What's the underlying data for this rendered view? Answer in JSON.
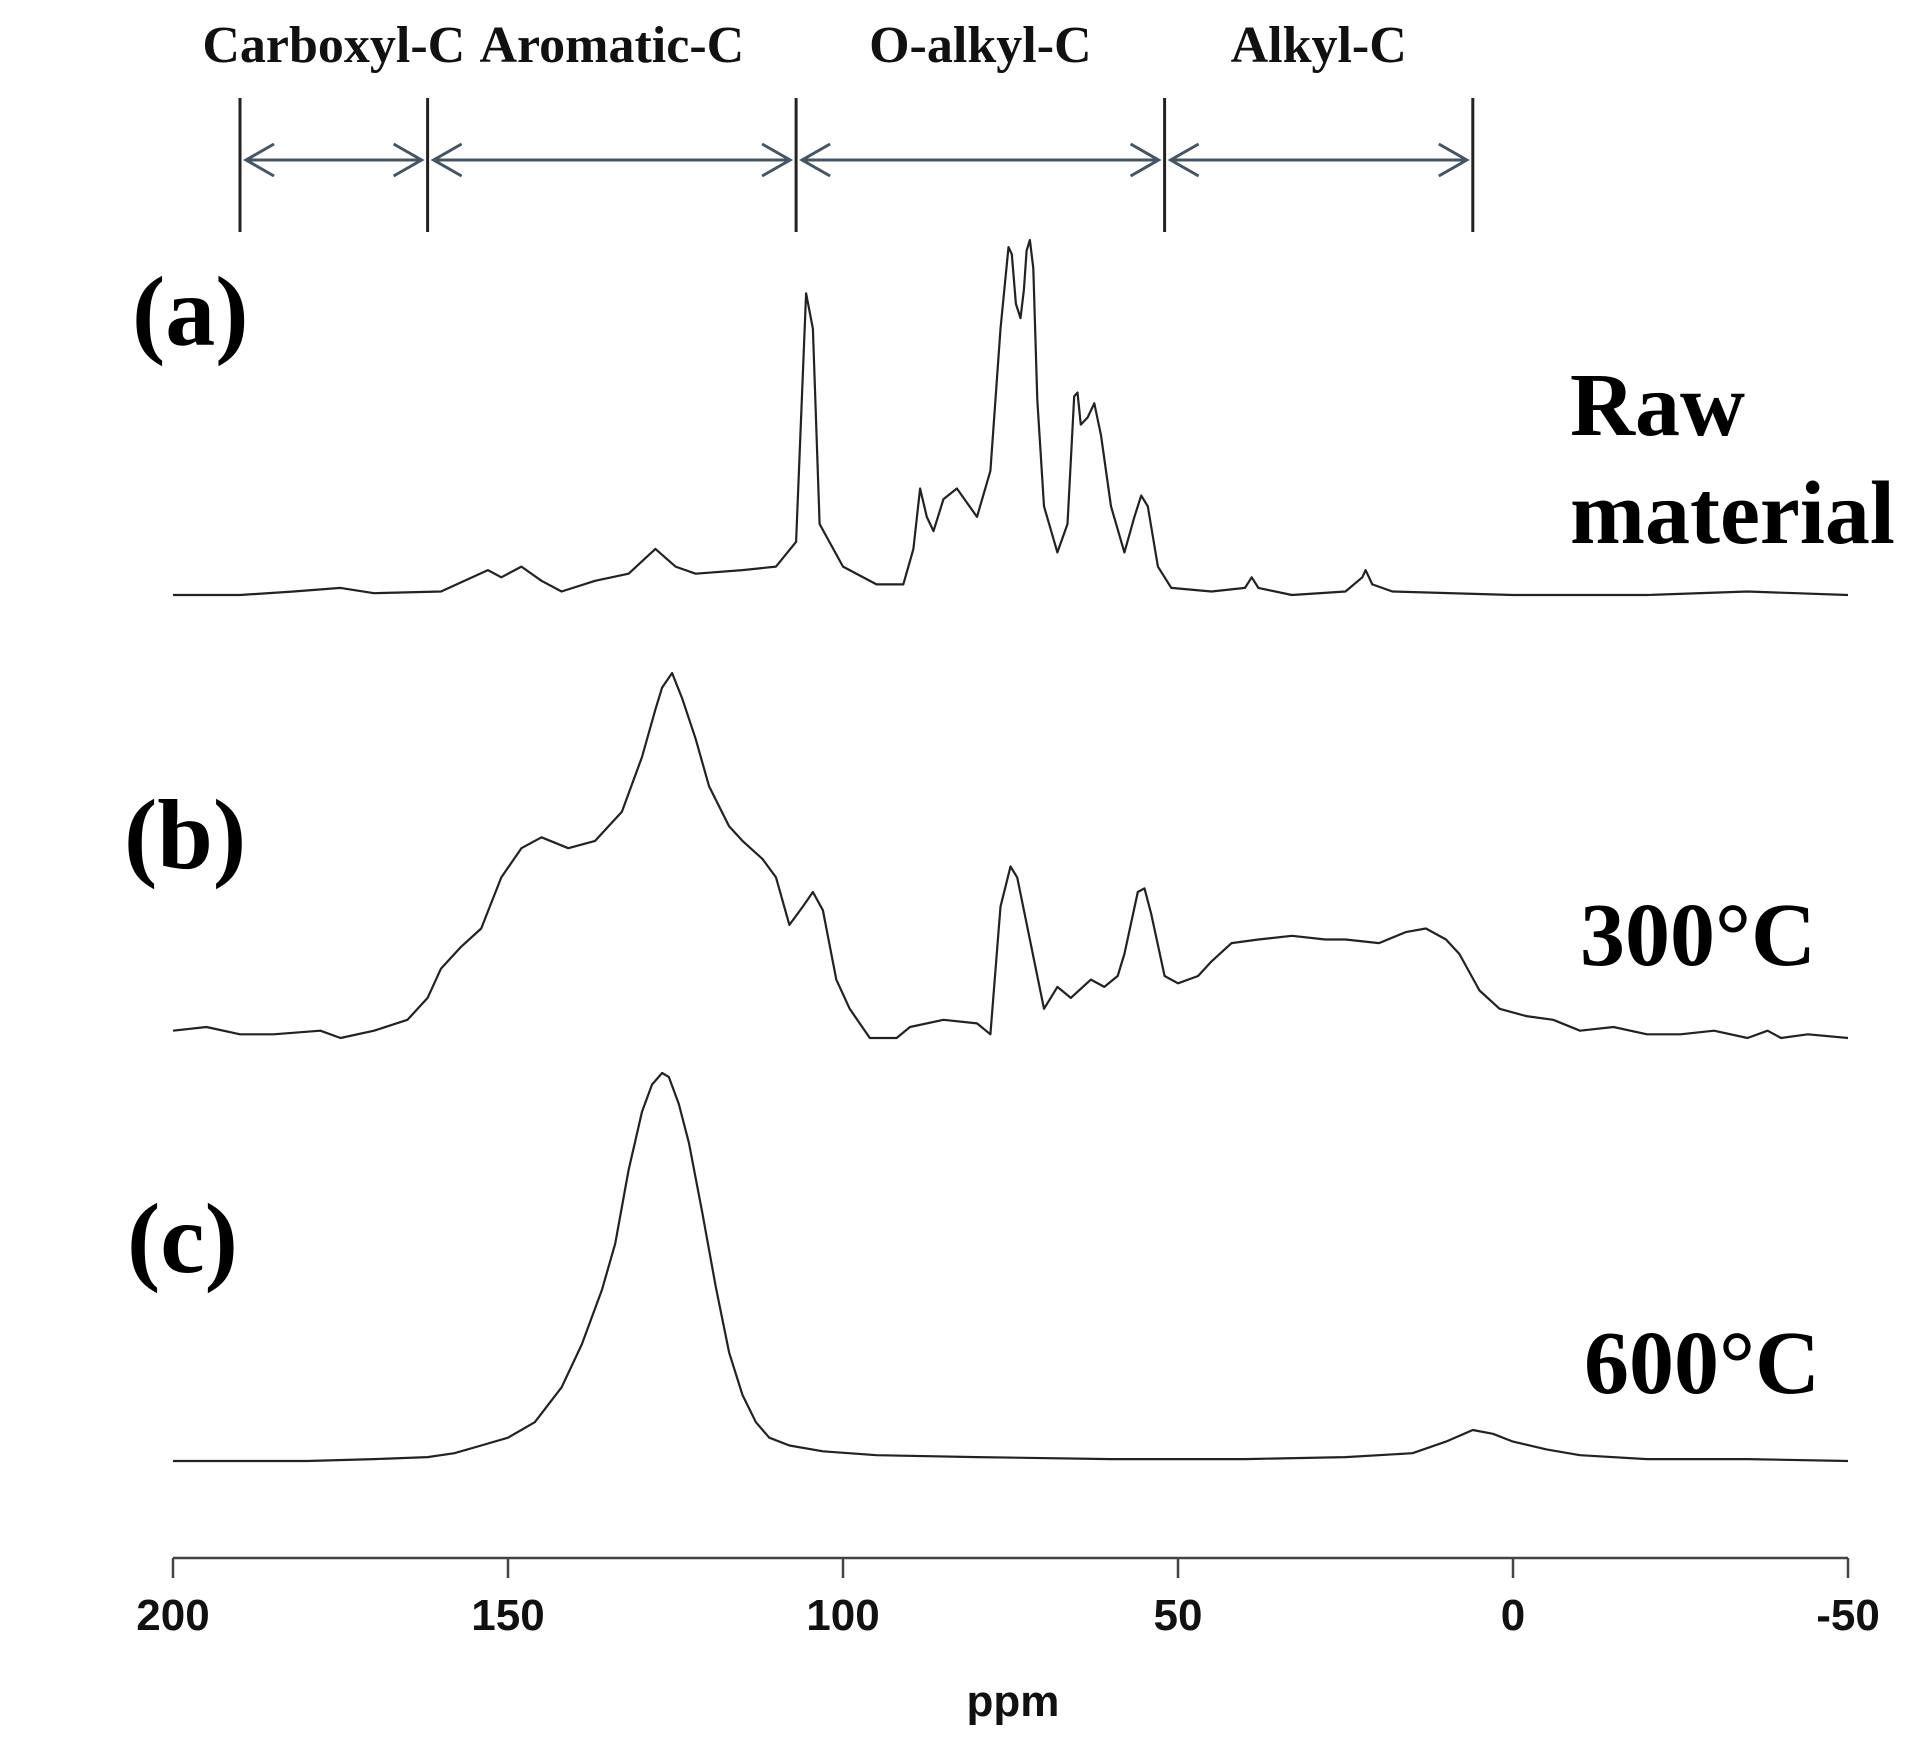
{
  "chart_data": {
    "type": "line",
    "xlabel": "ppm",
    "ylabel": "",
    "xlim": [
      200,
      -50
    ],
    "xticks": [
      200,
      150,
      100,
      50,
      0,
      -50
    ],
    "regions": [
      {
        "label": "Carboxyl-C",
        "from": 190,
        "to": 162
      },
      {
        "label": "Aromatic-C",
        "from": 162,
        "to": 107
      },
      {
        "label": "O-alkyl-C",
        "from": 107,
        "to": 52
      },
      {
        "label": "Alkyl-C",
        "from": 52,
        "to": 6
      }
    ],
    "series": [
      {
        "panel": "(a)",
        "name": "Raw material",
        "points": [
          [
            200,
            0.0
          ],
          [
            190,
            0.0
          ],
          [
            182,
            0.01
          ],
          [
            175,
            0.02
          ],
          [
            170,
            0.005
          ],
          [
            160,
            0.01
          ],
          [
            153,
            0.07
          ],
          [
            151,
            0.05
          ],
          [
            148,
            0.08
          ],
          [
            145,
            0.04
          ],
          [
            142,
            0.01
          ],
          [
            137,
            0.04
          ],
          [
            132,
            0.06
          ],
          [
            128,
            0.13
          ],
          [
            125,
            0.08
          ],
          [
            122,
            0.06
          ],
          [
            115,
            0.07
          ],
          [
            110,
            0.08
          ],
          [
            107,
            0.15
          ],
          [
            105.5,
            0.85
          ],
          [
            104.5,
            0.75
          ],
          [
            103.5,
            0.2
          ],
          [
            100,
            0.08
          ],
          [
            95,
            0.03
          ],
          [
            91,
            0.03
          ],
          [
            89.5,
            0.13
          ],
          [
            88.5,
            0.3
          ],
          [
            87.5,
            0.22
          ],
          [
            86.5,
            0.18
          ],
          [
            85,
            0.27
          ],
          [
            83,
            0.3
          ],
          [
            80,
            0.22
          ],
          [
            78,
            0.35
          ],
          [
            76.5,
            0.75
          ],
          [
            75.3,
            0.98
          ],
          [
            74.8,
            0.96
          ],
          [
            74.2,
            0.82
          ],
          [
            73.5,
            0.78
          ],
          [
            73,
            0.86
          ],
          [
            72.6,
            0.97
          ],
          [
            72.1,
            1.0
          ],
          [
            71.6,
            0.92
          ],
          [
            71,
            0.55
          ],
          [
            70,
            0.25
          ],
          [
            68,
            0.12
          ],
          [
            66.5,
            0.2
          ],
          [
            65.5,
            0.56
          ],
          [
            65,
            0.57
          ],
          [
            64.5,
            0.48
          ],
          [
            63.5,
            0.5
          ],
          [
            62.5,
            0.54
          ],
          [
            61.5,
            0.45
          ],
          [
            60,
            0.25
          ],
          [
            58,
            0.12
          ],
          [
            56.5,
            0.22
          ],
          [
            55.5,
            0.28
          ],
          [
            54.5,
            0.25
          ],
          [
            53,
            0.08
          ],
          [
            51,
            0.02
          ],
          [
            45,
            0.01
          ],
          [
            40,
            0.02
          ],
          [
            39,
            0.05
          ],
          [
            38,
            0.02
          ],
          [
            33,
            0.0
          ],
          [
            25,
            0.01
          ],
          [
            22.5,
            0.05
          ],
          [
            22,
            0.07
          ],
          [
            21,
            0.03
          ],
          [
            18,
            0.01
          ],
          [
            0,
            0.0
          ],
          [
            -20,
            0.0
          ],
          [
            -35,
            0.01
          ],
          [
            -50,
            0.0
          ]
        ]
      },
      {
        "panel": "(b)",
        "name": "300°C",
        "points": [
          [
            200,
            0.02
          ],
          [
            195,
            0.03
          ],
          [
            190,
            0.01
          ],
          [
            185,
            0.01
          ],
          [
            178,
            0.02
          ],
          [
            175,
            0.0
          ],
          [
            170,
            0.02
          ],
          [
            165,
            0.05
          ],
          [
            162,
            0.11
          ],
          [
            160,
            0.19
          ],
          [
            157,
            0.25
          ],
          [
            154,
            0.3
          ],
          [
            151,
            0.44
          ],
          [
            148,
            0.52
          ],
          [
            145,
            0.55
          ],
          [
            141,
            0.52
          ],
          [
            137,
            0.54
          ],
          [
            133,
            0.62
          ],
          [
            130,
            0.77
          ],
          [
            128,
            0.9
          ],
          [
            127,
            0.96
          ],
          [
            125.5,
            1.0
          ],
          [
            124,
            0.93
          ],
          [
            122,
            0.82
          ],
          [
            120,
            0.69
          ],
          [
            117,
            0.58
          ],
          [
            115,
            0.54
          ],
          [
            112,
            0.49
          ],
          [
            110,
            0.44
          ],
          [
            108,
            0.31
          ],
          [
            106,
            0.36
          ],
          [
            104.5,
            0.4
          ],
          [
            103,
            0.35
          ],
          [
            101,
            0.16
          ],
          [
            99,
            0.08
          ],
          [
            96,
            0.0
          ],
          [
            92,
            0.0
          ],
          [
            90,
            0.03
          ],
          [
            85,
            0.05
          ],
          [
            80,
            0.04
          ],
          [
            78,
            0.01
          ],
          [
            76.5,
            0.36
          ],
          [
            75,
            0.47
          ],
          [
            74,
            0.44
          ],
          [
            72,
            0.26
          ],
          [
            70,
            0.08
          ],
          [
            68,
            0.14
          ],
          [
            66,
            0.11
          ],
          [
            63,
            0.16
          ],
          [
            61,
            0.14
          ],
          [
            59,
            0.17
          ],
          [
            58,
            0.23
          ],
          [
            56,
            0.4
          ],
          [
            55,
            0.41
          ],
          [
            54,
            0.34
          ],
          [
            52,
            0.17
          ],
          [
            50,
            0.15
          ],
          [
            47,
            0.17
          ],
          [
            45,
            0.21
          ],
          [
            42,
            0.26
          ],
          [
            38,
            0.27
          ],
          [
            33,
            0.28
          ],
          [
            28,
            0.27
          ],
          [
            25,
            0.27
          ],
          [
            20,
            0.26
          ],
          [
            16,
            0.29
          ],
          [
            13,
            0.3
          ],
          [
            10,
            0.27
          ],
          [
            8,
            0.23
          ],
          [
            5,
            0.13
          ],
          [
            2,
            0.08
          ],
          [
            -2,
            0.06
          ],
          [
            -6,
            0.05
          ],
          [
            -10,
            0.02
          ],
          [
            -15,
            0.03
          ],
          [
            -20,
            0.01
          ],
          [
            -25,
            0.01
          ],
          [
            -30,
            0.02
          ],
          [
            -35,
            0.0
          ],
          [
            -38,
            0.02
          ],
          [
            -40,
            0.0
          ],
          [
            -44,
            0.01
          ],
          [
            -50,
            0.0
          ]
        ]
      },
      {
        "panel": "(c)",
        "name": "600°C",
        "points": [
          [
            200,
            0.0
          ],
          [
            190,
            0.0
          ],
          [
            180,
            0.0
          ],
          [
            170,
            0.005
          ],
          [
            162,
            0.01
          ],
          [
            158,
            0.02
          ],
          [
            154,
            0.04
          ],
          [
            150,
            0.06
          ],
          [
            146,
            0.1
          ],
          [
            142,
            0.19
          ],
          [
            139,
            0.3
          ],
          [
            136,
            0.44
          ],
          [
            134,
            0.56
          ],
          [
            132,
            0.75
          ],
          [
            130,
            0.9
          ],
          [
            128.5,
            0.97
          ],
          [
            127,
            1.0
          ],
          [
            126,
            0.99
          ],
          [
            124.5,
            0.92
          ],
          [
            123,
            0.82
          ],
          [
            121,
            0.64
          ],
          [
            119,
            0.45
          ],
          [
            117,
            0.28
          ],
          [
            115,
            0.17
          ],
          [
            113,
            0.1
          ],
          [
            111,
            0.06
          ],
          [
            108,
            0.04
          ],
          [
            103,
            0.025
          ],
          [
            95,
            0.015
          ],
          [
            80,
            0.01
          ],
          [
            60,
            0.005
          ],
          [
            40,
            0.005
          ],
          [
            25,
            0.01
          ],
          [
            15,
            0.02
          ],
          [
            10,
            0.05
          ],
          [
            6,
            0.08
          ],
          [
            3,
            0.07
          ],
          [
            0,
            0.05
          ],
          [
            -5,
            0.03
          ],
          [
            -10,
            0.015
          ],
          [
            -20,
            0.005
          ],
          [
            -35,
            0.005
          ],
          [
            -50,
            0.0
          ]
        ]
      }
    ]
  }
}
